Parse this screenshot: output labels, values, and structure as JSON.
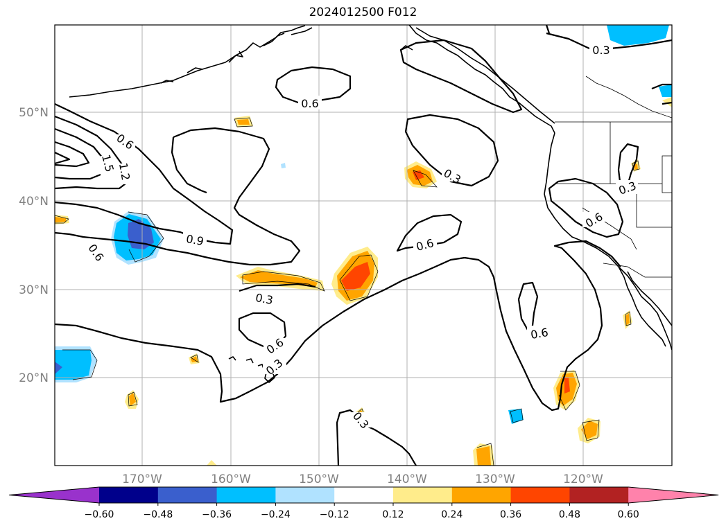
{
  "title": "2024012500 F012",
  "lat_labels": [
    "50°N",
    "40°N",
    "30°N",
    "20°N"
  ],
  "lon_labels": [
    "170°W",
    "160°W",
    "150°W",
    "140°W",
    "130°W",
    "120°W"
  ],
  "contour_labels": [
    "0.3",
    "0.6",
    "0.6",
    "1.5",
    "1.2",
    "0.3",
    "0.3",
    "0.9",
    "0.6",
    "0.6",
    "0.6",
    "0.3",
    "0.6",
    "0.3",
    "0.6",
    "0.3"
  ],
  "colorbar": {
    "ticks": [
      "−0.60",
      "−0.48",
      "−0.36",
      "−0.24",
      "−0.12",
      "0.12",
      "0.24",
      "0.36",
      "0.48",
      "0.60"
    ],
    "colors": [
      "#9932cc",
      "#00008b",
      "#3a5fcd",
      "#00bfff",
      "#b0e2ff",
      "#ffffff",
      "#ffec8b",
      "#ffa500",
      "#ff4500",
      "#b22222",
      "#ff82ab"
    ]
  }
}
